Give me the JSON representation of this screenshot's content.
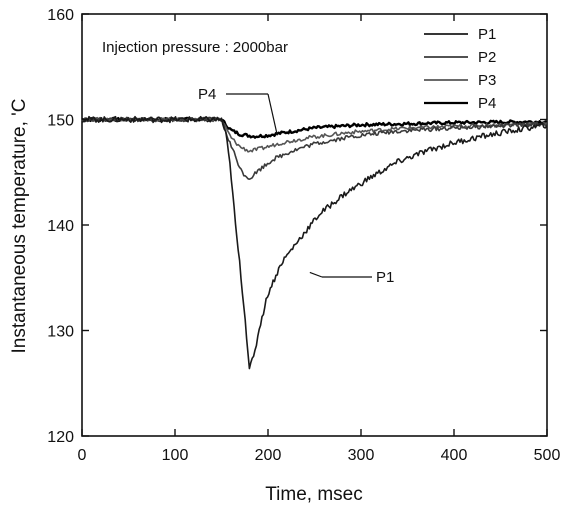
{
  "chart_data": {
    "type": "line",
    "title": "",
    "xlabel": "Time, msec",
    "ylabel": "Instantaneous temperature, 'C",
    "xlim": [
      0,
      500
    ],
    "ylim": [
      120,
      160
    ],
    "xticks": [
      "0",
      "100",
      "200",
      "300",
      "400",
      "500"
    ],
    "yticks": [
      "120",
      "130",
      "140",
      "150",
      "160"
    ],
    "grid": false,
    "legend_position": "top-right",
    "annotation_text": "Injection pressure : 2000bar",
    "callouts": [
      {
        "text": "P4",
        "series": "P4",
        "x": 210,
        "y": 148.5
      },
      {
        "text": "P1",
        "series": "P1",
        "x": 245,
        "y": 135.5
      }
    ],
    "series": [
      {
        "name": "P1",
        "color": "#1a1a1a",
        "x": [
          0,
          150,
          155,
          160,
          165,
          170,
          175,
          180,
          185,
          190,
          200,
          215,
          235,
          255,
          280,
          310,
          340,
          370,
          400,
          430,
          460,
          500
        ],
        "y": [
          150,
          150,
          148.5,
          145,
          140,
          136,
          131.5,
          126.5,
          127.5,
          130,
          133.5,
          136.5,
          138.8,
          141,
          142.8,
          144.5,
          146,
          147,
          147.8,
          148.4,
          148.9,
          149.5
        ]
      },
      {
        "name": "P2",
        "color": "#3a3a3a",
        "x": [
          0,
          150,
          158,
          165,
          172,
          180,
          190,
          205,
          225,
          250,
          290,
          340,
          400,
          450,
          500
        ],
        "y": [
          150,
          150,
          148,
          146.5,
          145,
          144.4,
          145.2,
          146.2,
          147,
          147.7,
          148.4,
          148.9,
          149.2,
          149.4,
          149.6
        ]
      },
      {
        "name": "P3",
        "color": "#555555",
        "x": [
          0,
          150,
          160,
          170,
          180,
          195,
          215,
          245,
          290,
          350,
          420,
          500
        ],
        "y": [
          150,
          150,
          148.3,
          147.4,
          147,
          147.3,
          147.8,
          148.3,
          148.8,
          149.2,
          149.4,
          149.6
        ]
      },
      {
        "name": "P4",
        "color": "#000000",
        "x": [
          0,
          150,
          160,
          170,
          185,
          200,
          220,
          250,
          300,
          400,
          500
        ],
        "y": [
          150,
          150,
          149,
          148.6,
          148.4,
          148.5,
          148.8,
          149.2,
          149.5,
          149.7,
          149.8
        ]
      }
    ]
  }
}
